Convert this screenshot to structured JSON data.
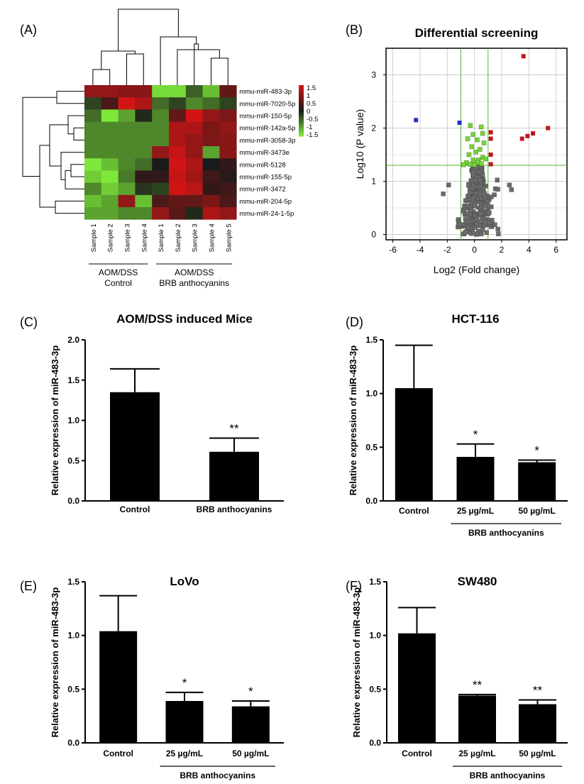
{
  "panels": {
    "A": "(A)",
    "B": "(B)",
    "C": "(C)",
    "D": "(D)",
    "E": "(E)",
    "F": "(F)"
  },
  "chart_data": [
    {
      "id": "A",
      "type": "heatmap",
      "rows": [
        "mmu-miR-483-3p",
        "mmu-miR-7020-5p",
        "mmu-miR-150-5p",
        "mmu-miR-142a-5p",
        "mmu-miR-3058-3p",
        "mmu-miR-3473e",
        "mmu-miR-5128",
        "mmu-miR-155-5p",
        "mmu-miR-3472",
        "mmu-miR-204-5p",
        "mmu-miR-24-1-5p"
      ],
      "columns": [
        "Sample 1",
        "Sample 2",
        "Sample 3",
        "Sample 4",
        "Sample 1",
        "Sample 2",
        "Sample 3",
        "Sample 4",
        "Sample 5"
      ],
      "groups": [
        {
          "label": [
            "AOM/DSS",
            "Control"
          ],
          "columns": [
            0,
            3
          ]
        },
        {
          "label": [
            "AOM/DSS",
            "BRB anthocyanins"
          ],
          "columns": [
            4,
            8
          ]
        }
      ],
      "values": [
        [
          1.0,
          1.0,
          0.9,
          0.9,
          -1.4,
          -1.4,
          -0.5,
          -1.2,
          0.6
        ],
        [
          -0.3,
          0.4,
          1.6,
          1.2,
          -0.6,
          -0.3,
          -0.8,
          -0.6,
          -0.3
        ],
        [
          -0.6,
          -1.5,
          -1.0,
          -0.1,
          -0.8,
          0.6,
          1.5,
          1.0,
          0.8
        ],
        [
          -0.8,
          -0.8,
          -0.8,
          -0.8,
          -0.8,
          1.2,
          1.2,
          0.8,
          1.0
        ],
        [
          -0.8,
          -0.8,
          -0.8,
          -0.8,
          -0.8,
          1.2,
          1.0,
          0.8,
          0.9
        ],
        [
          -0.8,
          -0.8,
          -0.8,
          -0.8,
          1.0,
          1.4,
          1.0,
          -1.0,
          0.9
        ],
        [
          -1.6,
          -1.2,
          -0.8,
          -0.6,
          0.0,
          1.8,
          1.2,
          0.0,
          0.2
        ],
        [
          -1.3,
          -1.5,
          -0.7,
          0.2,
          0.2,
          1.4,
          1.1,
          0.3,
          0.1
        ],
        [
          -0.8,
          -1.3,
          -1.0,
          -0.2,
          -0.3,
          1.7,
          1.3,
          0.2,
          0.3
        ],
        [
          -1.2,
          -1.0,
          1.0,
          -1.2,
          0.4,
          0.6,
          0.6,
          0.8,
          0.4
        ],
        [
          -1.0,
          -1.0,
          -0.8,
          -0.8,
          1.0,
          0.5,
          -0.1,
          1.2,
          1.0
        ]
      ],
      "colorbar": {
        "ticks": [
          "1.5",
          "1",
          "0.5",
          "0",
          "-0.5",
          "-1",
          "-1.5"
        ],
        "low": "#7de83a",
        "mid": "#1a1a1a",
        "high": "#d11515"
      }
    },
    {
      "id": "B",
      "type": "scatter",
      "title": "Differential screening",
      "xlabel": "Log2 (Fold change)",
      "ylabel": "Log10 (P value)",
      "xlim": [
        -6.5,
        6.8
      ],
      "ylim": [
        -0.1,
        3.5
      ],
      "xticks": [
        -6,
        -4,
        -2,
        0,
        2,
        4,
        6
      ],
      "yticks": [
        0,
        1,
        2,
        3
      ],
      "thresholds": {
        "x": [
          -1,
          1
        ],
        "y": 1.3
      },
      "grid": true,
      "colors": {
        "up": "#c0161b",
        "down": "#1f35c9",
        "sig": "#7bd23c",
        "ns": "#6b6b6b"
      },
      "up": [
        [
          3.6,
          3.35
        ],
        [
          1.2,
          1.92
        ],
        [
          1.2,
          1.8
        ],
        [
          5.4,
          2.0
        ],
        [
          4.3,
          1.9
        ],
        [
          3.9,
          1.85
        ],
        [
          3.5,
          1.8
        ],
        [
          1.2,
          1.5
        ],
        [
          1.2,
          1.32
        ]
      ],
      "down": [
        [
          -4.3,
          2.15
        ],
        [
          -1.1,
          2.1
        ]
      ],
      "sig": [
        [
          -0.3,
          2.05
        ],
        [
          0.5,
          2.02
        ],
        [
          0.6,
          1.9
        ],
        [
          -0.1,
          1.88
        ],
        [
          0.2,
          1.78
        ],
        [
          -0.5,
          1.8
        ],
        [
          0.7,
          1.72
        ],
        [
          -0.2,
          1.65
        ],
        [
          0.4,
          1.6
        ],
        [
          0.1,
          1.55
        ],
        [
          -0.4,
          1.5
        ],
        [
          0.6,
          1.45
        ],
        [
          0.3,
          1.4
        ],
        [
          -0.1,
          1.4
        ],
        [
          0.8,
          1.42
        ],
        [
          -0.6,
          1.35
        ],
        [
          0.5,
          1.33
        ],
        [
          -0.3,
          1.32
        ],
        [
          0.2,
          1.36
        ],
        [
          0.0,
          1.31
        ],
        [
          -0.8,
          1.31
        ]
      ],
      "ns_count": 320
    },
    {
      "id": "C",
      "type": "bar",
      "title": "AOM/DSS induced Mice",
      "ylabel": "Relative expression of miR-483-3p",
      "ylim": [
        0,
        2.0
      ],
      "yticks": [
        "0.0",
        "0.5",
        "1.0",
        "1.5",
        "2.0"
      ],
      "categories": [
        "Control",
        "BRB anthocyanins"
      ],
      "values": [
        1.35,
        0.61
      ],
      "errors": [
        0.29,
        0.17
      ],
      "significance": [
        "",
        "**"
      ],
      "group_label": ""
    },
    {
      "id": "D",
      "type": "bar",
      "title": "HCT-116",
      "ylabel": "Relative expression of miR-483-3p",
      "ylim": [
        0,
        1.5
      ],
      "yticks": [
        "0.0",
        "0.5",
        "1.0",
        "1.5"
      ],
      "categories": [
        "Control",
        "25 µg/mL",
        "50 µg/mL"
      ],
      "values": [
        1.05,
        0.41,
        0.36
      ],
      "errors": [
        0.4,
        0.12,
        0.02
      ],
      "significance": [
        "",
        "*",
        "*"
      ],
      "group_label": "BRB anthocyanins"
    },
    {
      "id": "E",
      "type": "bar",
      "title": "LoVo",
      "ylabel": "Relative expression of miR-483-3p",
      "ylim": [
        0,
        1.5
      ],
      "yticks": [
        "0.0",
        "0.5",
        "1.0",
        "1.5"
      ],
      "categories": [
        "Control",
        "25 µg/mL",
        "50 µg/mL"
      ],
      "values": [
        1.04,
        0.39,
        0.34
      ],
      "errors": [
        0.33,
        0.08,
        0.05
      ],
      "significance": [
        "",
        "*",
        "*"
      ],
      "group_label": "BRB anthocyanins"
    },
    {
      "id": "F",
      "type": "bar",
      "title": "SW480",
      "ylabel": "Relative expression of miR-483-3p",
      "ylim": [
        0,
        1.5
      ],
      "yticks": [
        "0.0",
        "0.5",
        "1.0",
        "1.5"
      ],
      "categories": [
        "Control",
        "25 µg/mL",
        "50 µg/mL"
      ],
      "values": [
        1.02,
        0.44,
        0.36
      ],
      "errors": [
        0.24,
        0.01,
        0.04
      ],
      "significance": [
        "",
        "**",
        "**"
      ],
      "group_label": "BRB anthocyanins"
    }
  ]
}
